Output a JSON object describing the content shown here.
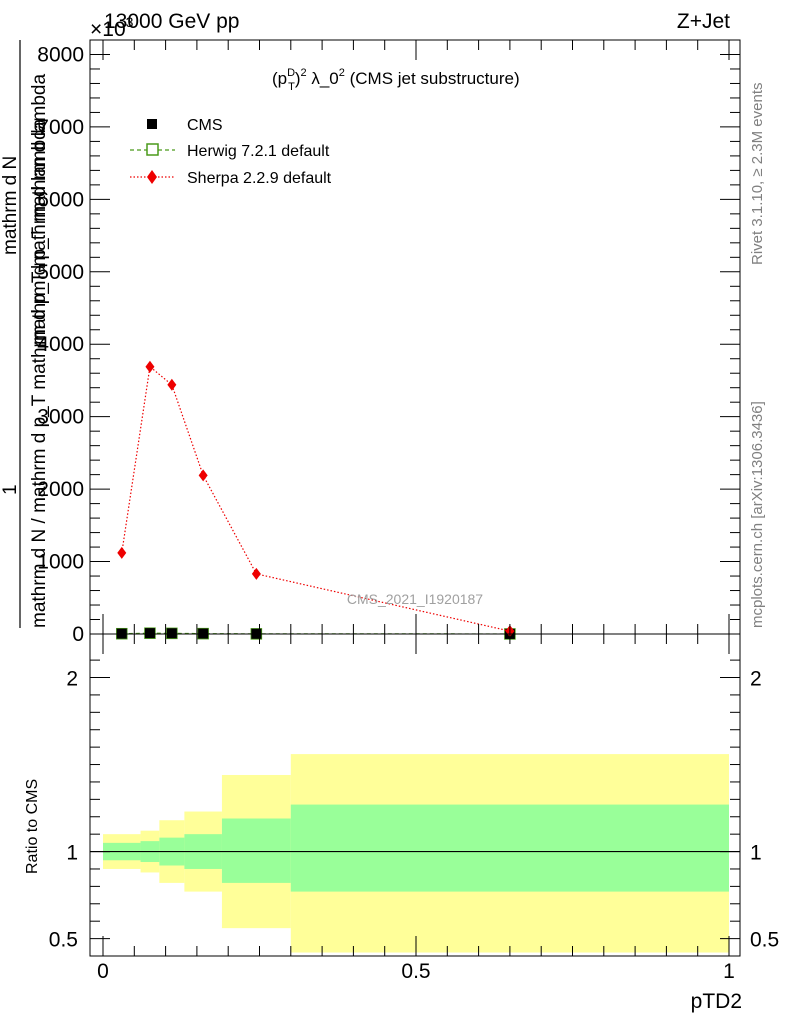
{
  "header": {
    "left": "13000 GeV pp",
    "right": "Z+Jet",
    "title": "(p_T^D)^2 λ_0^2 (CMS jet substructure)",
    "title_base": "(p",
    "title_sub": "T",
    "title_sup": "D",
    "title_close": ")",
    "title_sup2": "2",
    "title_mid": " λ_0",
    "title_sup3": "2",
    "title_tail": " (CMS jet substructure)",
    "watermark": "CMS_2021_I1920187",
    "side_top": "Rivet 3.1.10, ≥ 2.3M events",
    "side_bottom": "mcplots.cern.ch [arXiv:1306.3436]",
    "exponent_label": "×10",
    "exponent_sup": "3"
  },
  "colors": {
    "cms": "#000000",
    "herwig": "#4a9a1a",
    "sherpa": "#ee0000",
    "band_inner": "#99ff99",
    "band_outer": "#ffff99"
  },
  "chart_data": {
    "type": "line",
    "xlabel": "pTD2",
    "ylabel_numerator": "1",
    "ylabel_denominator": "mathrm d N / mathrm d p_T mathrm d p_T mathrm d lambda",
    "ylabel_top": "mathrm d^2N",
    "ylabel_lines": [
      "mathrm d N",
      "mathrm d p_T mathrm d lambda"
    ],
    "xlim": [
      0,
      1
    ],
    "ylim": [
      0,
      8200
    ],
    "y_scale_factor": "1e3",
    "x_ticks": [
      {
        "v": 0,
        "label": "0"
      },
      {
        "v": 0.5,
        "label": "0.5"
      },
      {
        "v": 1,
        "label": "1"
      }
    ],
    "y_ticks": [
      {
        "v": 0,
        "label": "0"
      },
      {
        "v": 1000,
        "label": "1000"
      },
      {
        "v": 2000,
        "label": "2000"
      },
      {
        "v": 3000,
        "label": "3000"
      },
      {
        "v": 4000,
        "label": "4000"
      },
      {
        "v": 5000,
        "label": "5000"
      },
      {
        "v": 6000,
        "label": "6000"
      },
      {
        "v": 7000,
        "label": "7000"
      },
      {
        "v": 8000,
        "label": "8000"
      }
    ],
    "legend_placement": "top-left",
    "series": [
      {
        "name": "CMS",
        "key": "cms",
        "style": "square-filled",
        "x": [
          0.03,
          0.075,
          0.11,
          0.16,
          0.245,
          0.65
        ],
        "y": [
          5,
          12,
          10,
          6,
          3,
          1
        ]
      },
      {
        "name": "Herwig 7.2.1 default",
        "key": "herwig",
        "style": "square-open-dashed",
        "x": [
          0.03,
          0.075,
          0.11,
          0.16,
          0.245,
          0.65
        ],
        "y": [
          4,
          11,
          9,
          5,
          2,
          1
        ]
      },
      {
        "name": "Sherpa 2.2.9 default",
        "key": "sherpa",
        "style": "diamond-dotted",
        "x": [
          0.03,
          0.075,
          0.11,
          0.16,
          0.245,
          0.65
        ],
        "y": [
          1120,
          3690,
          3440,
          2190,
          830,
          40
        ]
      }
    ],
    "ratio": {
      "ylabel": "Ratio to CMS",
      "ylim": [
        0.4,
        2.25
      ],
      "y_ticks": [
        {
          "v": 0.5,
          "label": "0.5"
        },
        {
          "v": 1,
          "label": "1"
        },
        {
          "v": 2,
          "label": "2"
        }
      ],
      "bins": [
        {
          "lo": 0.0,
          "hi": 0.06,
          "in_lo": 0.95,
          "in_hi": 1.05,
          "out_lo": 0.9,
          "out_hi": 1.1
        },
        {
          "lo": 0.06,
          "hi": 0.09,
          "in_lo": 0.94,
          "in_hi": 1.06,
          "out_lo": 0.88,
          "out_hi": 1.12
        },
        {
          "lo": 0.09,
          "hi": 0.13,
          "in_lo": 0.92,
          "in_hi": 1.08,
          "out_lo": 0.82,
          "out_hi": 1.18
        },
        {
          "lo": 0.13,
          "hi": 0.19,
          "in_lo": 0.9,
          "in_hi": 1.1,
          "out_lo": 0.77,
          "out_hi": 1.23
        },
        {
          "lo": 0.19,
          "hi": 0.3,
          "in_lo": 0.82,
          "in_hi": 1.19,
          "out_lo": 0.56,
          "out_hi": 1.44
        },
        {
          "lo": 0.3,
          "hi": 1.0,
          "in_lo": 0.77,
          "in_hi": 1.27,
          "out_lo": 0.42,
          "out_hi": 1.56
        }
      ]
    }
  }
}
